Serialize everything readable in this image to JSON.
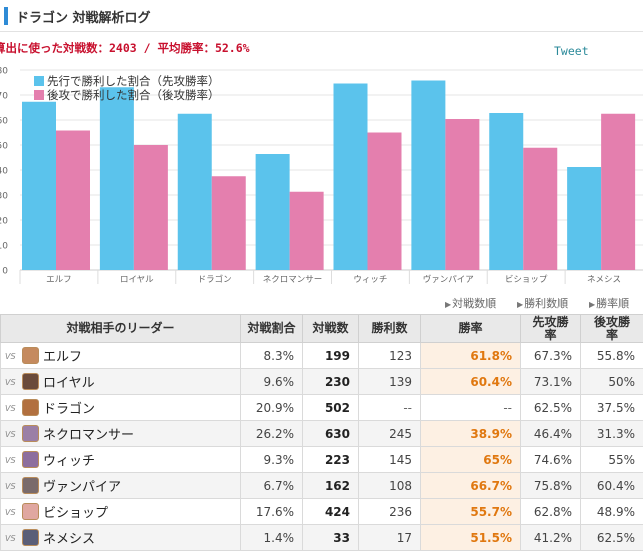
{
  "header": {
    "title": "ドラゴン 対戦解析ログ"
  },
  "summary": {
    "text": "算出に使った対戦数：2403 / 平均勝率：52.6%"
  },
  "tweet_label": "Tweet",
  "colors": {
    "first": "#5bc3ec",
    "second": "#e47fae",
    "accent": "#c8102e",
    "rate": "#e07810"
  },
  "chart_data": {
    "type": "bar",
    "categories": [
      "エルフ",
      "ロイヤル",
      "ドラゴン",
      "ネクロマンサー",
      "ウィッチ",
      "ヴァンパイア",
      "ビショップ",
      "ネメシス"
    ],
    "series": [
      {
        "name": "先行で勝利した割合（先攻勝率）",
        "values": [
          67.3,
          73.1,
          62.5,
          46.4,
          74.6,
          75.8,
          62.8,
          41.2
        ]
      },
      {
        "name": "後攻で勝利した割合（後攻勝率）",
        "values": [
          55.8,
          50,
          37.5,
          31.3,
          55,
          60.4,
          48.9,
          62.5
        ]
      }
    ],
    "ylim": [
      0,
      80
    ],
    "yticks": [
      "0",
      "10",
      "20",
      "30",
      "40",
      "50",
      "60",
      "70",
      "80"
    ],
    "grid": true,
    "legend": "top-left"
  },
  "sort_links": [
    "対戦数順",
    "勝利数順",
    "勝率順"
  ],
  "table": {
    "headers": [
      "対戦相手のリーダー",
      "対戦割合",
      "対戦数",
      "勝利数",
      "勝率",
      "先攻勝\n率",
      "後攻勝\n率"
    ],
    "vs_label": "VS",
    "rows": [
      {
        "leader": "エルフ",
        "share": "8.3%",
        "matches": "199",
        "wins": "123",
        "rate": "61.8%",
        "first": "67.3%",
        "second": "55.8%",
        "avatar": "#c58a5e"
      },
      {
        "leader": "ロイヤル",
        "share": "9.6%",
        "matches": "230",
        "wins": "139",
        "rate": "60.4%",
        "first": "73.1%",
        "second": "50%",
        "avatar": "#6a4a3a"
      },
      {
        "leader": "ドラゴン",
        "share": "20.9%",
        "matches": "502",
        "wins": "--",
        "rate": "--",
        "first": "62.5%",
        "second": "37.5%",
        "avatar": "#b2703f"
      },
      {
        "leader": "ネクロマンサー",
        "share": "26.2%",
        "matches": "630",
        "wins": "245",
        "rate": "38.9%",
        "first": "46.4%",
        "second": "31.3%",
        "avatar": "#9b7fa6"
      },
      {
        "leader": "ウィッチ",
        "share": "9.3%",
        "matches": "223",
        "wins": "145",
        "rate": "65%",
        "first": "74.6%",
        "second": "55%",
        "avatar": "#8d6e9e"
      },
      {
        "leader": "ヴァンパイア",
        "share": "6.7%",
        "matches": "162",
        "wins": "108",
        "rate": "66.7%",
        "first": "75.8%",
        "second": "60.4%",
        "avatar": "#7a6b6b"
      },
      {
        "leader": "ビショップ",
        "share": "17.6%",
        "matches": "424",
        "wins": "236",
        "rate": "55.7%",
        "first": "62.8%",
        "second": "48.9%",
        "avatar": "#e0a7a0"
      },
      {
        "leader": "ネメシス",
        "share": "1.4%",
        "matches": "33",
        "wins": "17",
        "rate": "51.5%",
        "first": "41.2%",
        "second": "62.5%",
        "avatar": "#5a5e78"
      }
    ]
  }
}
